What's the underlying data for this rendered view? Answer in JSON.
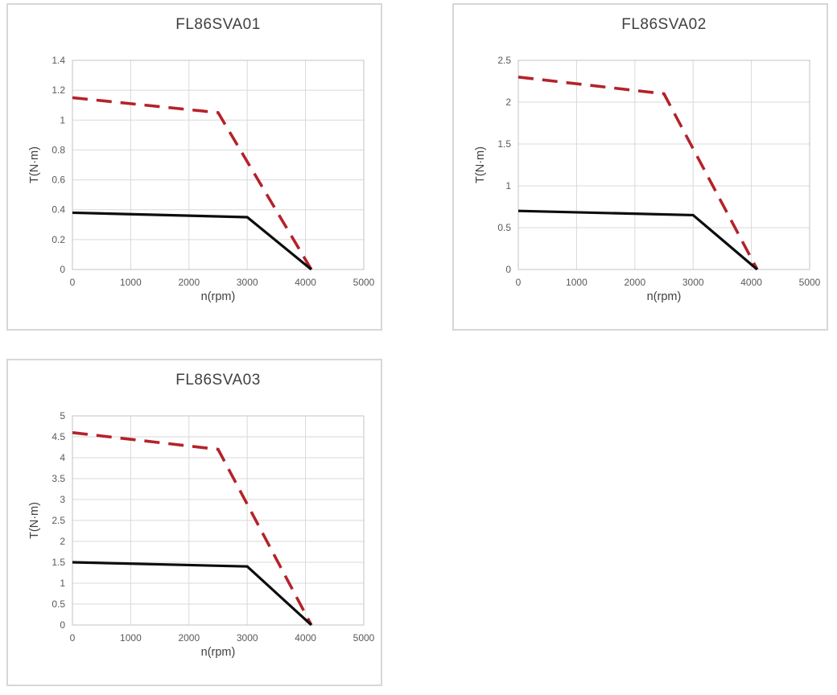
{
  "page": {
    "background_color": "#ffffff"
  },
  "colors": {
    "card_border": "#d7d7d7",
    "plot_border": "#c3c3c3",
    "gridline": "#d9d9d9",
    "tick_label": "#595959",
    "axis_title": "#404040",
    "chart_title": "#404040",
    "peak_line": "#b4222a",
    "rated_line": "#0d0d0d"
  },
  "chart_data": [
    {
      "type": "line",
      "title": "FL86SVA01",
      "xlabel": "n(rpm)",
      "ylabel": "T(N·m)",
      "xlim": [
        0,
        5000
      ],
      "ylim": [
        0,
        1.4
      ],
      "grid": true,
      "legend": "none",
      "xticks": {
        "values": [
          0,
          1000,
          2000,
          3000,
          4000,
          5000
        ],
        "labels": [
          "0",
          "1000",
          "2000",
          "3000",
          "4000",
          "5000"
        ]
      },
      "yticks": {
        "values": [
          0,
          0.2,
          0.4,
          0.6,
          0.8,
          1,
          1.2,
          1.4
        ],
        "labels": [
          "0",
          "0.2",
          "0.4",
          "0.6",
          "0.8",
          "1",
          "1.2",
          "1.4"
        ]
      },
      "series": [
        {
          "name": "peak-torque",
          "style": "dashed",
          "color": "peak_line",
          "points": [
            [
              0,
              1.15
            ],
            [
              2500,
              1.05
            ],
            [
              4100,
              0
            ]
          ]
        },
        {
          "name": "rated-torque",
          "style": "solid",
          "color": "rated_line",
          "points": [
            [
              0,
              0.38
            ],
            [
              3000,
              0.35
            ],
            [
              4100,
              0
            ]
          ]
        }
      ]
    },
    {
      "type": "line",
      "title": "FL86SVA02",
      "xlabel": "n(rpm)",
      "ylabel": "T(N·m)",
      "xlim": [
        0,
        5000
      ],
      "ylim": [
        0,
        2.5
      ],
      "grid": true,
      "legend": "none",
      "xticks": {
        "values": [
          0,
          1000,
          2000,
          3000,
          4000,
          5000
        ],
        "labels": [
          "0",
          "1000",
          "2000",
          "3000",
          "4000",
          "5000"
        ]
      },
      "yticks": {
        "values": [
          0,
          0.5,
          1,
          1.5,
          2,
          2.5
        ],
        "labels": [
          "0",
          "0.5",
          "1",
          "1.5",
          "2",
          "2.5"
        ]
      },
      "series": [
        {
          "name": "peak-torque",
          "style": "dashed",
          "color": "peak_line",
          "points": [
            [
              0,
              2.3
            ],
            [
              2500,
              2.1
            ],
            [
              4100,
              0
            ]
          ]
        },
        {
          "name": "rated-torque",
          "style": "solid",
          "color": "rated_line",
          "points": [
            [
              0,
              0.7
            ],
            [
              3000,
              0.65
            ],
            [
              4100,
              0
            ]
          ]
        }
      ]
    },
    {
      "type": "line",
      "title": "FL86SVA03",
      "xlabel": "n(rpm)",
      "ylabel": "T(N·m)",
      "xlim": [
        0,
        5000
      ],
      "ylim": [
        0,
        5
      ],
      "grid": true,
      "legend": "none",
      "xticks": {
        "values": [
          0,
          1000,
          2000,
          3000,
          4000,
          5000
        ],
        "labels": [
          "0",
          "1000",
          "2000",
          "3000",
          "4000",
          "5000"
        ]
      },
      "yticks": {
        "values": [
          0,
          0.5,
          1,
          1.5,
          2,
          2.5,
          3,
          3.5,
          4,
          4.5,
          5
        ],
        "labels": [
          "0",
          "0.5",
          "1",
          "1.5",
          "2",
          "2.5",
          "3",
          "3.5",
          "4",
          "4.5",
          "5"
        ]
      },
      "series": [
        {
          "name": "peak-torque",
          "style": "dashed",
          "color": "peak_line",
          "points": [
            [
              0,
              4.6
            ],
            [
              2500,
              4.2
            ],
            [
              4100,
              0
            ]
          ]
        },
        {
          "name": "rated-torque",
          "style": "solid",
          "color": "rated_line",
          "points": [
            [
              0,
              1.5
            ],
            [
              3000,
              1.4
            ],
            [
              4100,
              0
            ]
          ]
        }
      ]
    }
  ]
}
